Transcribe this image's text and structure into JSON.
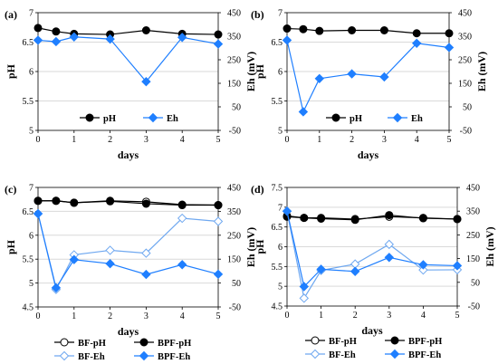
{
  "colors": {
    "ph": "#000000",
    "bf_ph_fill": "#ffffff",
    "eh": "#1f7fff",
    "bf_eh_line": "#6fa8f0",
    "grid": "#d9d9d9"
  },
  "chart_data": [
    {
      "id": "a",
      "panel_label": "(a)",
      "type": "line",
      "xlabel": "days",
      "ylabel_left": "pH",
      "ylabel_right": "Eh (mV)",
      "xlim": [
        0,
        5
      ],
      "xticks": [
        "0",
        "1",
        "2",
        "3",
        "4",
        "5"
      ],
      "ylim_left": [
        5,
        7
      ],
      "yticks_left": [
        "5",
        "5.5",
        "6",
        "6.5",
        "7"
      ],
      "ylim_right": [
        -50,
        450
      ],
      "yticks_right": [
        "-50",
        "50",
        "150",
        "250",
        "350",
        "450"
      ],
      "grid": "horizontal",
      "legend_position": "bottom-center",
      "series": [
        {
          "name": "pH",
          "axis": "left",
          "marker": "circle",
          "filled": true,
          "color": "#000000",
          "x": [
            0,
            0.5,
            1,
            2,
            3,
            4,
            5
          ],
          "y": [
            6.74,
            6.68,
            6.64,
            6.63,
            6.7,
            6.64,
            6.63
          ]
        },
        {
          "name": "Eh",
          "axis": "right",
          "marker": "diamond",
          "filled": true,
          "color": "#1f7fff",
          "x": [
            0,
            0.5,
            1,
            2,
            3,
            4,
            5
          ],
          "y": [
            333,
            327,
            347,
            338,
            157,
            345,
            317
          ]
        }
      ]
    },
    {
      "id": "b",
      "panel_label": "(b)",
      "type": "line",
      "xlabel": "days",
      "ylabel_left": "pH",
      "ylabel_right": "Eh (mV)",
      "xlim": [
        0,
        5
      ],
      "xticks": [
        "0",
        "1",
        "2",
        "3",
        "4",
        "5"
      ],
      "ylim_left": [
        5,
        7
      ],
      "yticks_left": [
        "5",
        "5.5",
        "6",
        "6.5",
        "7"
      ],
      "ylim_right": [
        -50,
        450
      ],
      "yticks_right": [
        "-50",
        "50",
        "150",
        "250",
        "350",
        "450"
      ],
      "grid": "horizontal",
      "legend_position": "bottom-center",
      "series": [
        {
          "name": "pH",
          "axis": "left",
          "marker": "circle",
          "filled": true,
          "color": "#000000",
          "x": [
            0,
            0.5,
            1,
            2,
            3,
            4,
            5
          ],
          "y": [
            6.73,
            6.72,
            6.69,
            6.7,
            6.7,
            6.65,
            6.65
          ]
        },
        {
          "name": "Eh",
          "axis": "right",
          "marker": "diamond",
          "filled": true,
          "color": "#1f7fff",
          "x": [
            0,
            0.5,
            1,
            2,
            3,
            4,
            5
          ],
          "y": [
            333,
            29,
            170,
            190,
            177,
            320,
            302
          ]
        }
      ]
    },
    {
      "id": "c",
      "panel_label": "(c)",
      "type": "line",
      "xlabel": "days",
      "ylabel_left": "pH",
      "ylabel_right": "Eh (mV)",
      "xlim": [
        0,
        5
      ],
      "xticks": [
        "0",
        "1",
        "2",
        "3",
        "4",
        "5"
      ],
      "ylim_left": [
        4.5,
        7
      ],
      "yticks_left": [
        "4.5",
        "5",
        "5.5",
        "6",
        "6.5",
        "7"
      ],
      "ylim_right": [
        -50,
        450
      ],
      "yticks_right": [
        "-50",
        "50",
        "150",
        "250",
        "350",
        "450"
      ],
      "grid": "horizontal",
      "legend_position": "bottom-center",
      "series": [
        {
          "name": "BF-pH",
          "axis": "left",
          "marker": "circle",
          "filled": false,
          "color": "#000000",
          "x": [
            0,
            0.5,
            1,
            2,
            3,
            4,
            5
          ],
          "y": [
            6.72,
            6.72,
            6.68,
            6.72,
            6.7,
            6.64,
            6.63
          ]
        },
        {
          "name": "BPF-pH",
          "axis": "left",
          "marker": "circle",
          "filled": true,
          "color": "#000000",
          "x": [
            0,
            0.5,
            1,
            2,
            3,
            4,
            5
          ],
          "y": [
            6.72,
            6.72,
            6.68,
            6.71,
            6.66,
            6.63,
            6.63
          ]
        },
        {
          "name": "BF-Eh",
          "axis": "right",
          "marker": "diamond",
          "filled": false,
          "color": "#6fa8f0",
          "x": [
            0,
            0.5,
            1,
            2,
            3,
            4,
            5
          ],
          "y": [
            340,
            23,
            168,
            187,
            175,
            321,
            308
          ]
        },
        {
          "name": "BPF-Eh",
          "axis": "right",
          "marker": "diamond",
          "filled": true,
          "color": "#1f7fff",
          "x": [
            0,
            0.5,
            1,
            2,
            3,
            4,
            5
          ],
          "y": [
            340,
            30,
            148,
            131,
            86,
            127,
            87
          ]
        }
      ]
    },
    {
      "id": "d",
      "panel_label": "(d)",
      "type": "line",
      "xlabel": "days",
      "ylabel_left": "pH",
      "ylabel_right": "Eh (mV)",
      "xlim": [
        0,
        5
      ],
      "xticks": [
        "0",
        "1",
        "2",
        "3",
        "4",
        "5"
      ],
      "ylim_left": [
        4.5,
        7.5
      ],
      "yticks_left": [
        "4.5",
        "5",
        "5.5",
        "6",
        "6.5",
        "7",
        "7.5"
      ],
      "ylim_right": [
        -50,
        450
      ],
      "yticks_right": [
        "-50",
        "50",
        "150",
        "250",
        "350",
        "450"
      ],
      "grid": "horizontal",
      "legend_position": "bottom-center",
      "series": [
        {
          "name": "BF-pH",
          "axis": "left",
          "marker": "circle",
          "filled": false,
          "color": "#000000",
          "x": [
            0,
            0.5,
            1,
            2,
            3,
            4,
            5
          ],
          "y": [
            6.78,
            6.73,
            6.73,
            6.7,
            6.76,
            6.73,
            6.7
          ]
        },
        {
          "name": "BPF-pH",
          "axis": "left",
          "marker": "circle",
          "filled": true,
          "color": "#000000",
          "x": [
            0,
            0.5,
            1,
            2,
            3,
            4,
            5
          ],
          "y": [
            6.76,
            6.73,
            6.71,
            6.68,
            6.8,
            6.72,
            6.7
          ]
        },
        {
          "name": "BF-Eh",
          "axis": "right",
          "marker": "diamond",
          "filled": false,
          "color": "#6fa8f0",
          "x": [
            0,
            0.5,
            1,
            2,
            3,
            4,
            5
          ],
          "y": [
            350,
            -17,
            100,
            127,
            210,
            102,
            103
          ]
        },
        {
          "name": "BPF-Eh",
          "axis": "right",
          "marker": "diamond",
          "filled": true,
          "color": "#1f7fff",
          "x": [
            0,
            0.5,
            1,
            2,
            3,
            4,
            5
          ],
          "y": [
            350,
            32,
            105,
            96,
            155,
            124,
            120
          ]
        }
      ]
    }
  ]
}
